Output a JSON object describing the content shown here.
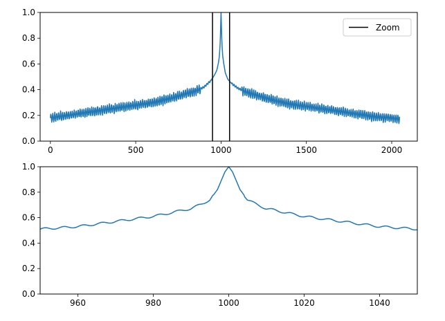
{
  "chart_data": [
    {
      "type": "line",
      "title": "",
      "xlabel": "",
      "ylabel": "",
      "xlim": [
        -60,
        2150
      ],
      "ylim": [
        0,
        1.0
      ],
      "xticks": [
        0,
        500,
        1000,
        1500,
        2000
      ],
      "yticks": [
        0.0,
        0.2,
        0.4,
        0.6,
        0.8,
        1.0
      ],
      "xtick_labels": [
        "0",
        "500",
        "1000",
        "1500",
        "2000"
      ],
      "ytick_labels": [
        "0.0",
        "0.2",
        "0.4",
        "0.6",
        "0.8",
        "1.0"
      ],
      "grid": false,
      "series": [
        {
          "color": "#1f77b4",
          "x": [
            0,
            100,
            200,
            300,
            400,
            500,
            600,
            700,
            800,
            850,
            900,
            940,
            960,
            975,
            985,
            990,
            995,
            998,
            1000,
            1002,
            1005,
            1010,
            1015,
            1025,
            1040,
            1060,
            1100,
            1150,
            1200,
            1300,
            1400,
            1500,
            1600,
            1700,
            1800,
            1900,
            2000,
            2047
          ],
          "y": [
            0.18,
            0.2,
            0.22,
            0.24,
            0.26,
            0.28,
            0.3,
            0.33,
            0.37,
            0.39,
            0.42,
            0.47,
            0.51,
            0.55,
            0.61,
            0.66,
            0.76,
            0.9,
            1.0,
            0.9,
            0.76,
            0.66,
            0.61,
            0.53,
            0.48,
            0.45,
            0.41,
            0.38,
            0.36,
            0.32,
            0.29,
            0.27,
            0.25,
            0.23,
            0.21,
            0.19,
            0.18,
            0.17
          ]
        }
      ],
      "vlines": [
        {
          "x": 950,
          "color": "#000000"
        },
        {
          "x": 1050,
          "color": "#000000"
        }
      ],
      "legend": {
        "placement": "top-right",
        "entries": [
          {
            "label": "Zoom",
            "color": "#000000"
          }
        ]
      }
    },
    {
      "type": "line",
      "title": "",
      "xlabel": "",
      "ylabel": "",
      "xlim": [
        950,
        1050
      ],
      "ylim": [
        0,
        1.0
      ],
      "xticks": [
        960,
        980,
        1000,
        1020,
        1040
      ],
      "yticks": [
        0.0,
        0.2,
        0.4,
        0.6,
        0.8,
        1.0
      ],
      "xtick_labels": [
        "960",
        "980",
        "1000",
        "1020",
        "1040"
      ],
      "ytick_labels": [
        "0.0",
        "0.2",
        "0.4",
        "0.6",
        "0.8",
        "1.0"
      ],
      "grid": false,
      "series": [
        {
          "color": "#1f77b4",
          "x": [
            950,
            955,
            960,
            965,
            970,
            975,
            980,
            985,
            988,
            990,
            993,
            995,
            997,
            999,
            1000,
            1001,
            1003,
            1005,
            1007,
            1010,
            1012,
            1015,
            1020,
            1025,
            1030,
            1035,
            1040,
            1045,
            1050
          ],
          "y": [
            0.51,
            0.52,
            0.53,
            0.55,
            0.57,
            0.59,
            0.61,
            0.64,
            0.66,
            0.67,
            0.71,
            0.74,
            0.82,
            0.96,
            1.0,
            0.96,
            0.82,
            0.74,
            0.71,
            0.67,
            0.66,
            0.64,
            0.61,
            0.59,
            0.57,
            0.55,
            0.53,
            0.52,
            0.51
          ]
        }
      ],
      "legend": null
    }
  ]
}
